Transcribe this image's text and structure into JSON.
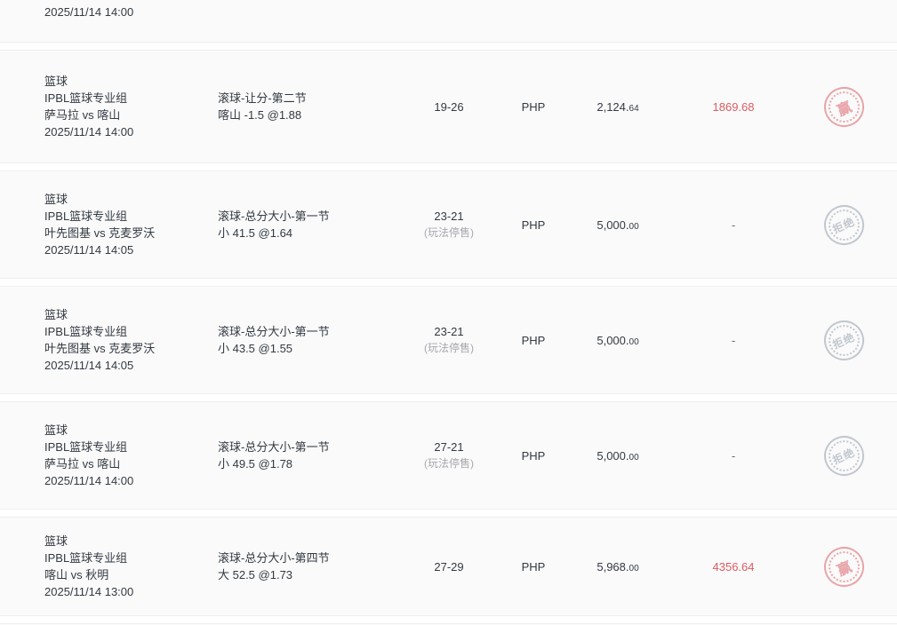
{
  "colors": {
    "row_background": "#fafafa",
    "gap_background": "#ffffff",
    "text_main": "#333a42",
    "text_muted": "#a7a7af",
    "result_win_red": "#db5c61",
    "stamp_win_red": "#e6979b",
    "stamp_rejected_gray": "#b9bfc9"
  },
  "partial_row": {
    "datetime": "2025/11/14 14:00"
  },
  "rows": [
    {
      "sport": "篮球",
      "league": "IPBL篮球专业组",
      "teams": "萨马拉 vs 喀山",
      "datetime": "2025/11/14 14:00",
      "market": "滚球-让分-第二节",
      "selection": "喀山 -1.5 @1.88",
      "score": "19-26",
      "score_note": "",
      "currency": "PHP",
      "amount_main": "2,124.",
      "amount_decimals": "64",
      "result": "1869.68",
      "status": "win",
      "stamp_label": "赢"
    },
    {
      "sport": "篮球",
      "league": "IPBL篮球专业组",
      "teams": "叶先图基 vs 克麦罗沃",
      "datetime": "2025/11/14 14:05",
      "market": "滚球-总分大小-第一节",
      "selection": "小 41.5 @1.64",
      "score": "23-21",
      "score_note": "(玩法停售)",
      "currency": "PHP",
      "amount_main": "5,000.",
      "amount_decimals": "00",
      "result": "-",
      "status": "rejected",
      "stamp_label": "拒绝"
    },
    {
      "sport": "篮球",
      "league": "IPBL篮球专业组",
      "teams": "叶先图基 vs 克麦罗沃",
      "datetime": "2025/11/14 14:05",
      "market": "滚球-总分大小-第一节",
      "selection": "小 43.5 @1.55",
      "score": "23-21",
      "score_note": "(玩法停售)",
      "currency": "PHP",
      "amount_main": "5,000.",
      "amount_decimals": "00",
      "result": "-",
      "status": "rejected",
      "stamp_label": "拒绝"
    },
    {
      "sport": "篮球",
      "league": "IPBL篮球专业组",
      "teams": "萨马拉 vs 喀山",
      "datetime": "2025/11/14 14:00",
      "market": "滚球-总分大小-第一节",
      "selection": "小 49.5 @1.78",
      "score": "27-21",
      "score_note": "(玩法停售)",
      "currency": "PHP",
      "amount_main": "5,000.",
      "amount_decimals": "00",
      "result": "-",
      "status": "rejected",
      "stamp_label": "拒绝"
    },
    {
      "sport": "篮球",
      "league": "IPBL篮球专业组",
      "teams": "喀山 vs 秋明",
      "datetime": "2025/11/14 13:00",
      "market": "滚球-总分大小-第四节",
      "selection": "大 52.5 @1.73",
      "score": "27-29",
      "score_note": "",
      "currency": "PHP",
      "amount_main": "5,968.",
      "amount_decimals": "00",
      "result": "4356.64",
      "status": "win",
      "stamp_label": "赢"
    }
  ]
}
